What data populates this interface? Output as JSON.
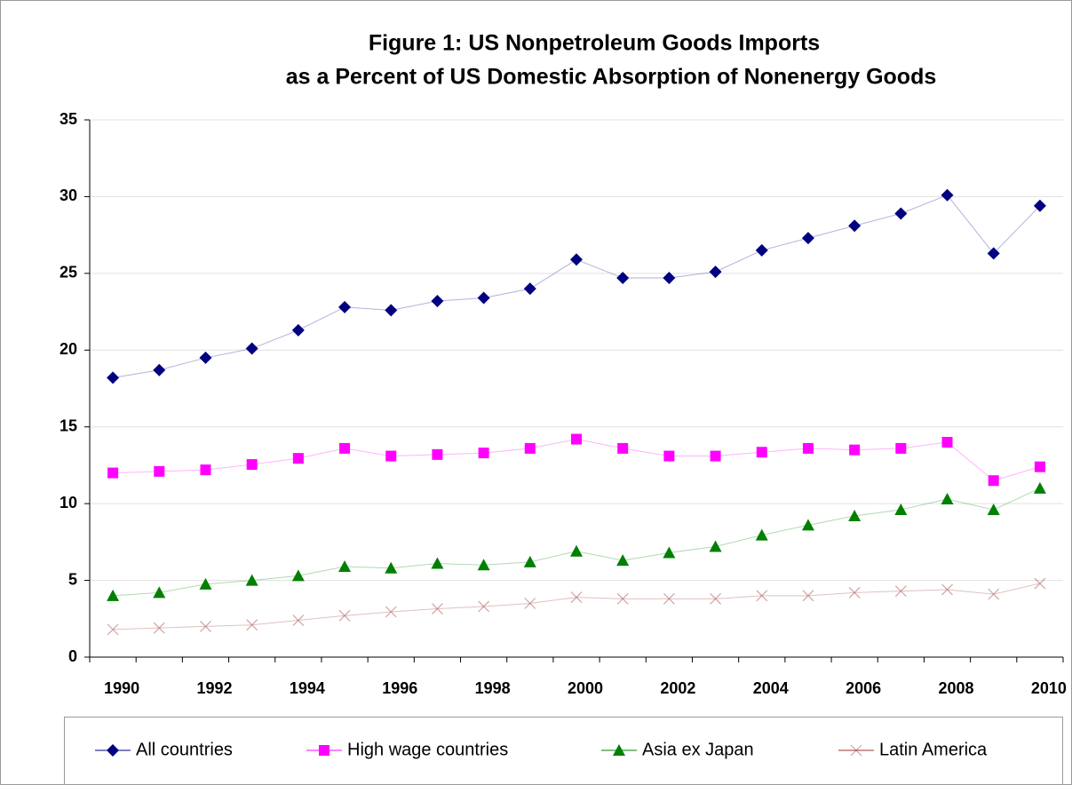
{
  "chart_data": {
    "type": "line",
    "title": [
      "Figure 1: US Nonpetroleum Goods Imports",
      "as a Percent of US Domestic Absorption of Nonenergy Goods"
    ],
    "categories": [
      "1990",
      null,
      "1992",
      null,
      "1994",
      null,
      "1996",
      null,
      "1998",
      null,
      "2000",
      null,
      "2002",
      null,
      "2004",
      null,
      "2006",
      null,
      "2008",
      null,
      "2010"
    ],
    "series": [
      {
        "name": "All countries",
        "color": "#000080",
        "marker": "diamond",
        "values": [
          18.2,
          18.7,
          19.5,
          20.1,
          21.3,
          22.8,
          22.6,
          23.2,
          23.4,
          24.0,
          25.9,
          24.7,
          24.7,
          25.1,
          26.5,
          27.3,
          28.1,
          28.9,
          30.1,
          26.3,
          29.4
        ]
      },
      {
        "name": "High wage countries",
        "color": "#FF00FF",
        "marker": "square",
        "values": [
          12.0,
          12.1,
          12.2,
          12.55,
          12.95,
          13.6,
          13.1,
          13.2,
          13.3,
          13.6,
          14.2,
          13.6,
          13.1,
          13.1,
          13.35,
          13.6,
          13.5,
          13.6,
          14.0,
          11.5,
          12.4
        ]
      },
      {
        "name": "Asia ex Japan",
        "color": "#008000",
        "marker": "triangle",
        "values": [
          4.0,
          4.2,
          4.75,
          5.0,
          5.3,
          5.9,
          5.8,
          6.1,
          6.0,
          6.2,
          6.9,
          6.3,
          6.8,
          7.2,
          7.95,
          8.6,
          9.2,
          9.6,
          10.3,
          9.6,
          11.0
        ]
      },
      {
        "name": "Latin America",
        "color": "#993333",
        "marker": "x",
        "values": [
          1.8,
          1.9,
          2.0,
          2.1,
          2.4,
          2.7,
          2.95,
          3.15,
          3.3,
          3.5,
          3.9,
          3.8,
          3.8,
          3.8,
          4.0,
          4.0,
          4.2,
          4.3,
          4.4,
          4.1,
          4.8
        ]
      }
    ],
    "ylim": [
      0,
      35
    ],
    "yticks": [
      0,
      5,
      10,
      15,
      20,
      25,
      30,
      35
    ],
    "grid": true,
    "legend": "bottom"
  }
}
